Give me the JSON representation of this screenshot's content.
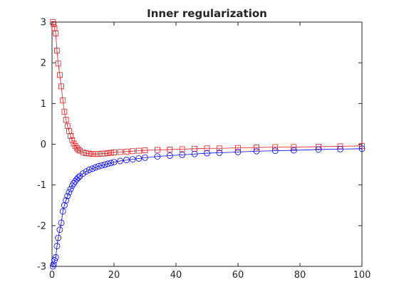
{
  "chart_data": {
    "type": "line",
    "title": "Inner regularization",
    "xlabel": "",
    "ylabel": "",
    "xlim": [
      0,
      100
    ],
    "ylim": [
      -3,
      3
    ],
    "grid": false,
    "xticks": [
      0,
      20,
      40,
      60,
      80,
      100
    ],
    "yticks": [
      -3,
      -2,
      -1,
      0,
      1,
      2,
      3
    ],
    "series": [
      {
        "marker": "square",
        "color": "#e41a1c",
        "x": [
          0.3,
          0.5,
          0.8,
          1.2,
          1.6,
          2.0,
          2.5,
          3.0,
          3.5,
          4.0,
          4.5,
          5.0,
          5.5,
          6.0,
          6.5,
          7.0,
          7.5,
          8.0,
          8.5,
          9.0,
          10.0,
          11.0,
          12.0,
          13.0,
          14.0,
          15.0,
          16.0,
          17.0,
          18.0,
          19.0,
          20.0,
          22.0,
          24.0,
          26.0,
          28.0,
          30.0,
          34.0,
          38.0,
          42.0,
          46.0,
          50.0,
          54.0,
          60.0,
          66.0,
          72.0,
          78.0,
          86.0,
          93.0,
          100.0
        ],
        "y": [
          3.0,
          2.95,
          2.85,
          2.72,
          2.3,
          1.98,
          1.7,
          1.42,
          1.08,
          0.8,
          0.6,
          0.45,
          0.32,
          0.2,
          0.1,
          0.02,
          -0.04,
          -0.09,
          -0.13,
          -0.16,
          -0.2,
          -0.22,
          -0.23,
          -0.24,
          -0.24,
          -0.24,
          -0.23,
          -0.23,
          -0.22,
          -0.21,
          -0.2,
          -0.19,
          -0.18,
          -0.17,
          -0.16,
          -0.15,
          -0.14,
          -0.13,
          -0.12,
          -0.11,
          -0.1,
          -0.1,
          -0.09,
          -0.08,
          -0.07,
          -0.07,
          -0.06,
          -0.05,
          -0.04
        ]
      },
      {
        "marker": "circle",
        "color": "#0000ff",
        "x": [
          0.3,
          0.5,
          0.8,
          1.2,
          1.6,
          2.0,
          2.5,
          3.0,
          3.5,
          4.0,
          4.5,
          5.0,
          5.5,
          6.0,
          6.5,
          7.0,
          7.5,
          8.0,
          8.5,
          9.0,
          10.0,
          11.0,
          12.0,
          13.0,
          14.0,
          15.0,
          16.0,
          17.0,
          18.0,
          19.0,
          20.0,
          22.0,
          24.0,
          26.0,
          28.0,
          30.0,
          34.0,
          38.0,
          42.0,
          46.0,
          50.0,
          54.0,
          60.0,
          66.0,
          72.0,
          78.0,
          86.0,
          93.0,
          100.0
        ],
        "y": [
          -3.0,
          -2.95,
          -2.85,
          -2.78,
          -2.5,
          -2.3,
          -2.1,
          -1.93,
          -1.65,
          -1.5,
          -1.38,
          -1.27,
          -1.18,
          -1.1,
          -1.02,
          -0.96,
          -0.91,
          -0.86,
          -0.82,
          -0.78,
          -0.72,
          -0.67,
          -0.63,
          -0.6,
          -0.57,
          -0.54,
          -0.52,
          -0.5,
          -0.48,
          -0.46,
          -0.44,
          -0.41,
          -0.39,
          -0.37,
          -0.35,
          -0.33,
          -0.3,
          -0.28,
          -0.26,
          -0.24,
          -0.22,
          -0.21,
          -0.19,
          -0.17,
          -0.16,
          -0.15,
          -0.13,
          -0.12,
          -0.11
        ]
      }
    ]
  }
}
